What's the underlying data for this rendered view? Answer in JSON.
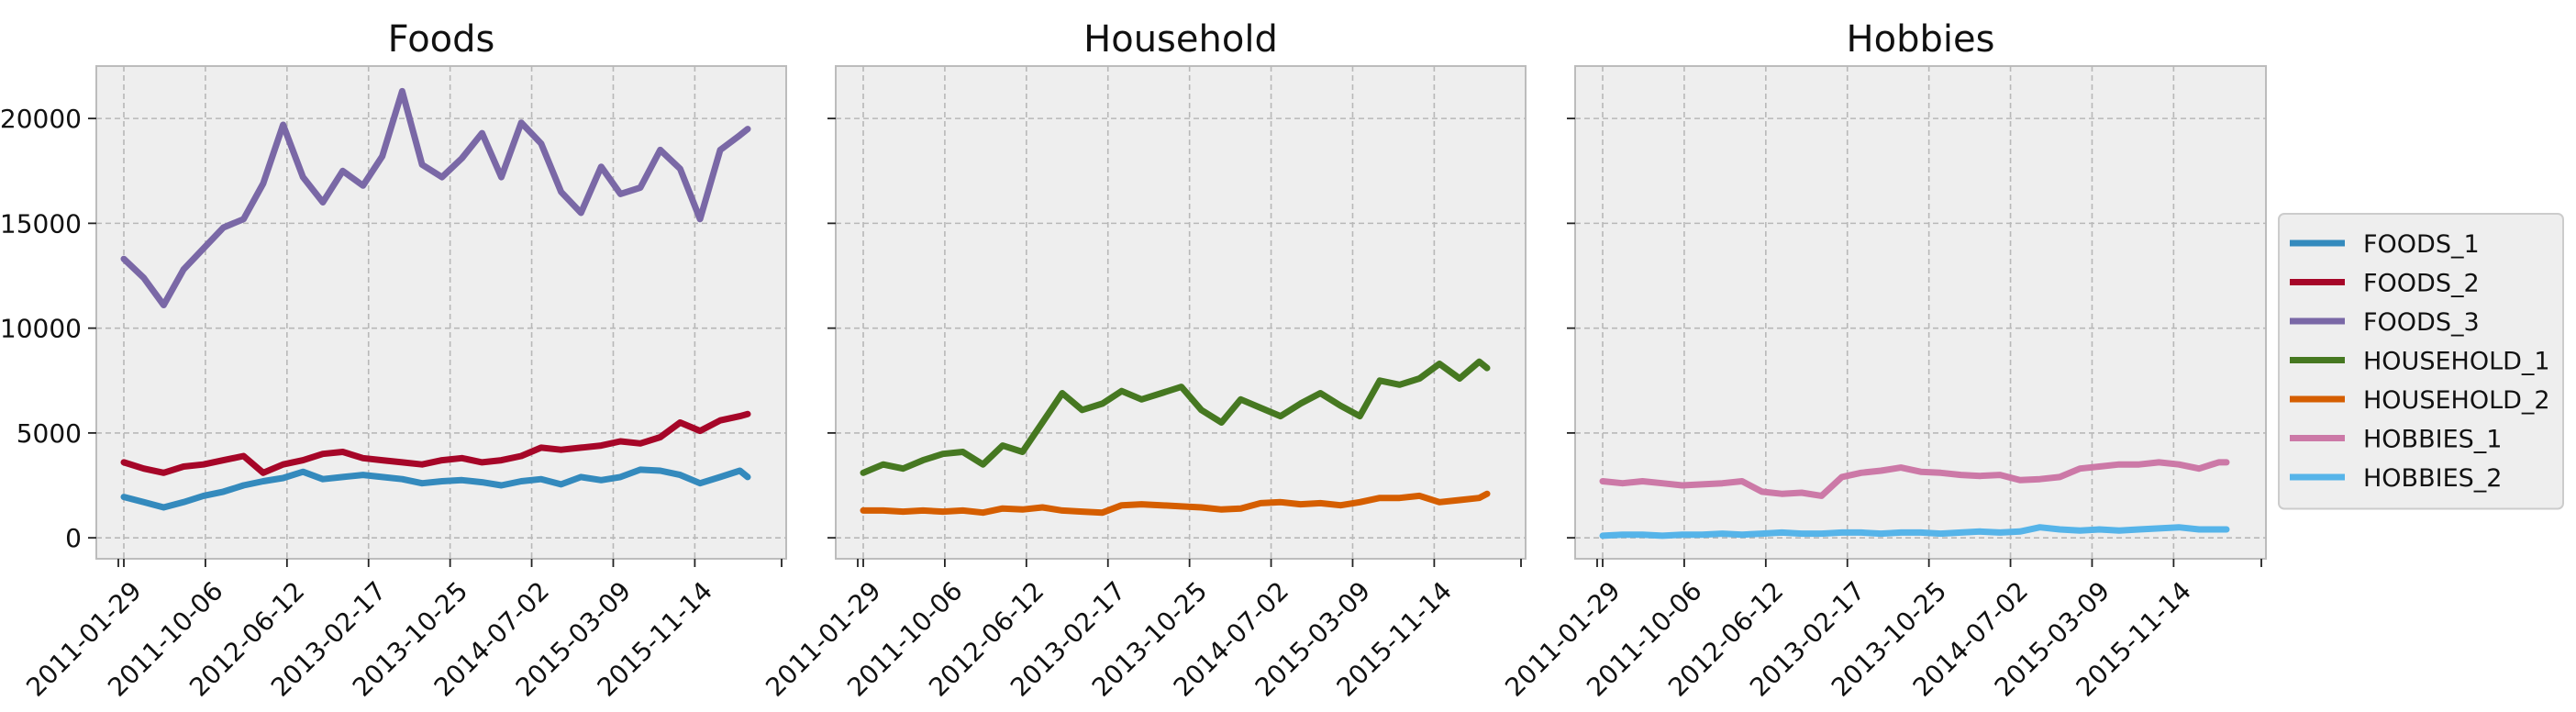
{
  "chart_data": [
    {
      "type": "line",
      "title": "Foods",
      "x": [
        "2011-01-29",
        "2011-03-31",
        "2011-05-31",
        "2011-07-31",
        "2011-09-30",
        "2011-11-30",
        "2012-01-31",
        "2012-03-31",
        "2012-05-31",
        "2012-07-31",
        "2012-09-30",
        "2012-11-30",
        "2013-01-31",
        "2013-03-31",
        "2013-05-31",
        "2013-07-31",
        "2013-09-30",
        "2013-11-30",
        "2014-01-31",
        "2014-03-31",
        "2014-05-31",
        "2014-07-31",
        "2014-09-30",
        "2014-11-30",
        "2015-01-31",
        "2015-03-31",
        "2015-05-31",
        "2015-07-31",
        "2015-09-30",
        "2015-11-30",
        "2016-01-31",
        "2016-03-31",
        "2016-04-24"
      ],
      "xticks": [
        "2011-01-29",
        "2011-10-06",
        "2012-06-12",
        "2013-02-17",
        "2013-10-25",
        "2014-07-02",
        "2015-03-09",
        "2015-11-14"
      ],
      "ylim": [
        -1000,
        22500
      ],
      "yticks": [
        0,
        5000,
        10000,
        15000,
        20000
      ],
      "series": [
        {
          "name": "FOODS_1",
          "color": "#348abd",
          "values": [
            1950,
            1700,
            1450,
            1700,
            2000,
            2200,
            2500,
            2700,
            2850,
            3150,
            2800,
            2900,
            3000,
            2900,
            2800,
            2600,
            2700,
            2750,
            2650,
            2500,
            2700,
            2800,
            2550,
            2900,
            2750,
            2900,
            3250,
            3200,
            3000,
            2600,
            2900,
            3200,
            2900
          ]
        },
        {
          "name": "FOODS_2",
          "color": "#a60628",
          "values": [
            3600,
            3300,
            3100,
            3400,
            3500,
            3700,
            3900,
            3100,
            3500,
            3700,
            4000,
            4100,
            3800,
            3700,
            3600,
            3500,
            3700,
            3800,
            3600,
            3700,
            3900,
            4300,
            4200,
            4300,
            4400,
            4600,
            4500,
            4800,
            5500,
            5100,
            5600,
            5800,
            5900
          ]
        },
        {
          "name": "FOODS_3",
          "color": "#7a68a6",
          "values": [
            13300,
            12400,
            11100,
            12800,
            13800,
            14800,
            15200,
            16900,
            19700,
            17200,
            16000,
            17500,
            16800,
            18200,
            21300,
            17800,
            17200,
            18100,
            19300,
            17200,
            19800,
            18800,
            16500,
            15500,
            17700,
            16400,
            16700,
            18500,
            17600,
            15200,
            18500,
            19200,
            19500
          ]
        }
      ]
    },
    {
      "type": "line",
      "title": "Household",
      "x": [
        "2011-01-29",
        "2011-03-31",
        "2011-05-31",
        "2011-07-31",
        "2011-09-30",
        "2011-11-30",
        "2012-01-31",
        "2012-03-31",
        "2012-05-31",
        "2012-07-31",
        "2012-09-30",
        "2012-11-30",
        "2013-01-31",
        "2013-03-31",
        "2013-05-31",
        "2013-07-31",
        "2013-09-30",
        "2013-11-30",
        "2014-01-31",
        "2014-03-31",
        "2014-05-31",
        "2014-07-31",
        "2014-09-30",
        "2014-11-30",
        "2015-01-31",
        "2015-03-31",
        "2015-05-31",
        "2015-07-31",
        "2015-09-30",
        "2015-11-30",
        "2016-01-31",
        "2016-03-31",
        "2016-04-24"
      ],
      "xticks": [
        "2011-01-29",
        "2011-10-06",
        "2012-06-12",
        "2013-02-17",
        "2013-10-25",
        "2014-07-02",
        "2015-03-09",
        "2015-11-14"
      ],
      "ylim": [
        -1000,
        22500
      ],
      "yticks": [
        0,
        5000,
        10000,
        15000,
        20000
      ],
      "series": [
        {
          "name": "HOUSEHOLD_1",
          "color": "#467821",
          "values": [
            3100,
            3500,
            3300,
            3700,
            4000,
            4100,
            3500,
            4400,
            4100,
            5500,
            6900,
            6100,
            6400,
            7000,
            6600,
            6900,
            7200,
            6100,
            5500,
            6600,
            6200,
            5800,
            6400,
            6900,
            6300,
            5800,
            7500,
            7300,
            7600,
            8300,
            7600,
            8400,
            8100
          ]
        },
        {
          "name": "HOUSEHOLD_2",
          "color": "#d55e00",
          "values": [
            1300,
            1300,
            1250,
            1300,
            1250,
            1300,
            1200,
            1400,
            1350,
            1450,
            1300,
            1250,
            1200,
            1550,
            1600,
            1550,
            1500,
            1450,
            1350,
            1400,
            1650,
            1700,
            1600,
            1650,
            1550,
            1700,
            1900,
            1900,
            2000,
            1700,
            1800,
            1900,
            2100
          ]
        }
      ]
    },
    {
      "type": "line",
      "title": "Hobbies",
      "x": [
        "2011-01-29",
        "2011-03-31",
        "2011-05-31",
        "2011-07-31",
        "2011-09-30",
        "2011-11-30",
        "2012-01-31",
        "2012-03-31",
        "2012-05-31",
        "2012-07-31",
        "2012-09-30",
        "2012-11-30",
        "2013-01-31",
        "2013-03-31",
        "2013-05-31",
        "2013-07-31",
        "2013-09-30",
        "2013-11-30",
        "2014-01-31",
        "2014-03-31",
        "2014-05-31",
        "2014-07-31",
        "2014-09-30",
        "2014-11-30",
        "2015-01-31",
        "2015-03-31",
        "2015-05-31",
        "2015-07-31",
        "2015-09-30",
        "2015-11-30",
        "2016-01-31",
        "2016-03-31",
        "2016-04-24"
      ],
      "xticks": [
        "2011-01-29",
        "2011-10-06",
        "2012-06-12",
        "2013-02-17",
        "2013-10-25",
        "2014-07-02",
        "2015-03-09",
        "2015-11-14"
      ],
      "ylim": [
        -1000,
        22500
      ],
      "yticks": [
        0,
        5000,
        10000,
        15000,
        20000
      ],
      "series": [
        {
          "name": "HOBBIES_1",
          "color": "#cc79a7",
          "values": [
            2700,
            2600,
            2700,
            2600,
            2500,
            2550,
            2600,
            2700,
            2200,
            2100,
            2150,
            2000,
            2900,
            3100,
            3200,
            3350,
            3150,
            3100,
            3000,
            2950,
            3000,
            2750,
            2800,
            2900,
            3300,
            3400,
            3500,
            3500,
            3600,
            3500,
            3300,
            3600,
            3600
          ]
        },
        {
          "name": "HOBBIES_2",
          "color": "#56b4e9",
          "values": [
            100,
            150,
            150,
            100,
            150,
            150,
            200,
            150,
            200,
            250,
            200,
            200,
            250,
            250,
            200,
            250,
            250,
            200,
            250,
            300,
            250,
            300,
            500,
            400,
            350,
            400,
            350,
            400,
            450,
            500,
            400,
            400,
            400
          ]
        }
      ]
    }
  ],
  "legend": {
    "placement": "right",
    "entries": [
      {
        "label": "FOODS_1",
        "color": "#348abd"
      },
      {
        "label": "FOODS_2",
        "color": "#a60628"
      },
      {
        "label": "FOODS_3",
        "color": "#7a68a6"
      },
      {
        "label": "HOUSEHOLD_1",
        "color": "#467821"
      },
      {
        "label": "HOUSEHOLD_2",
        "color": "#d55e00"
      },
      {
        "label": "HOBBIES_1",
        "color": "#cc79a7"
      },
      {
        "label": "HOBBIES_2",
        "color": "#56b4e9"
      }
    ]
  },
  "grid": true,
  "sharey": true
}
